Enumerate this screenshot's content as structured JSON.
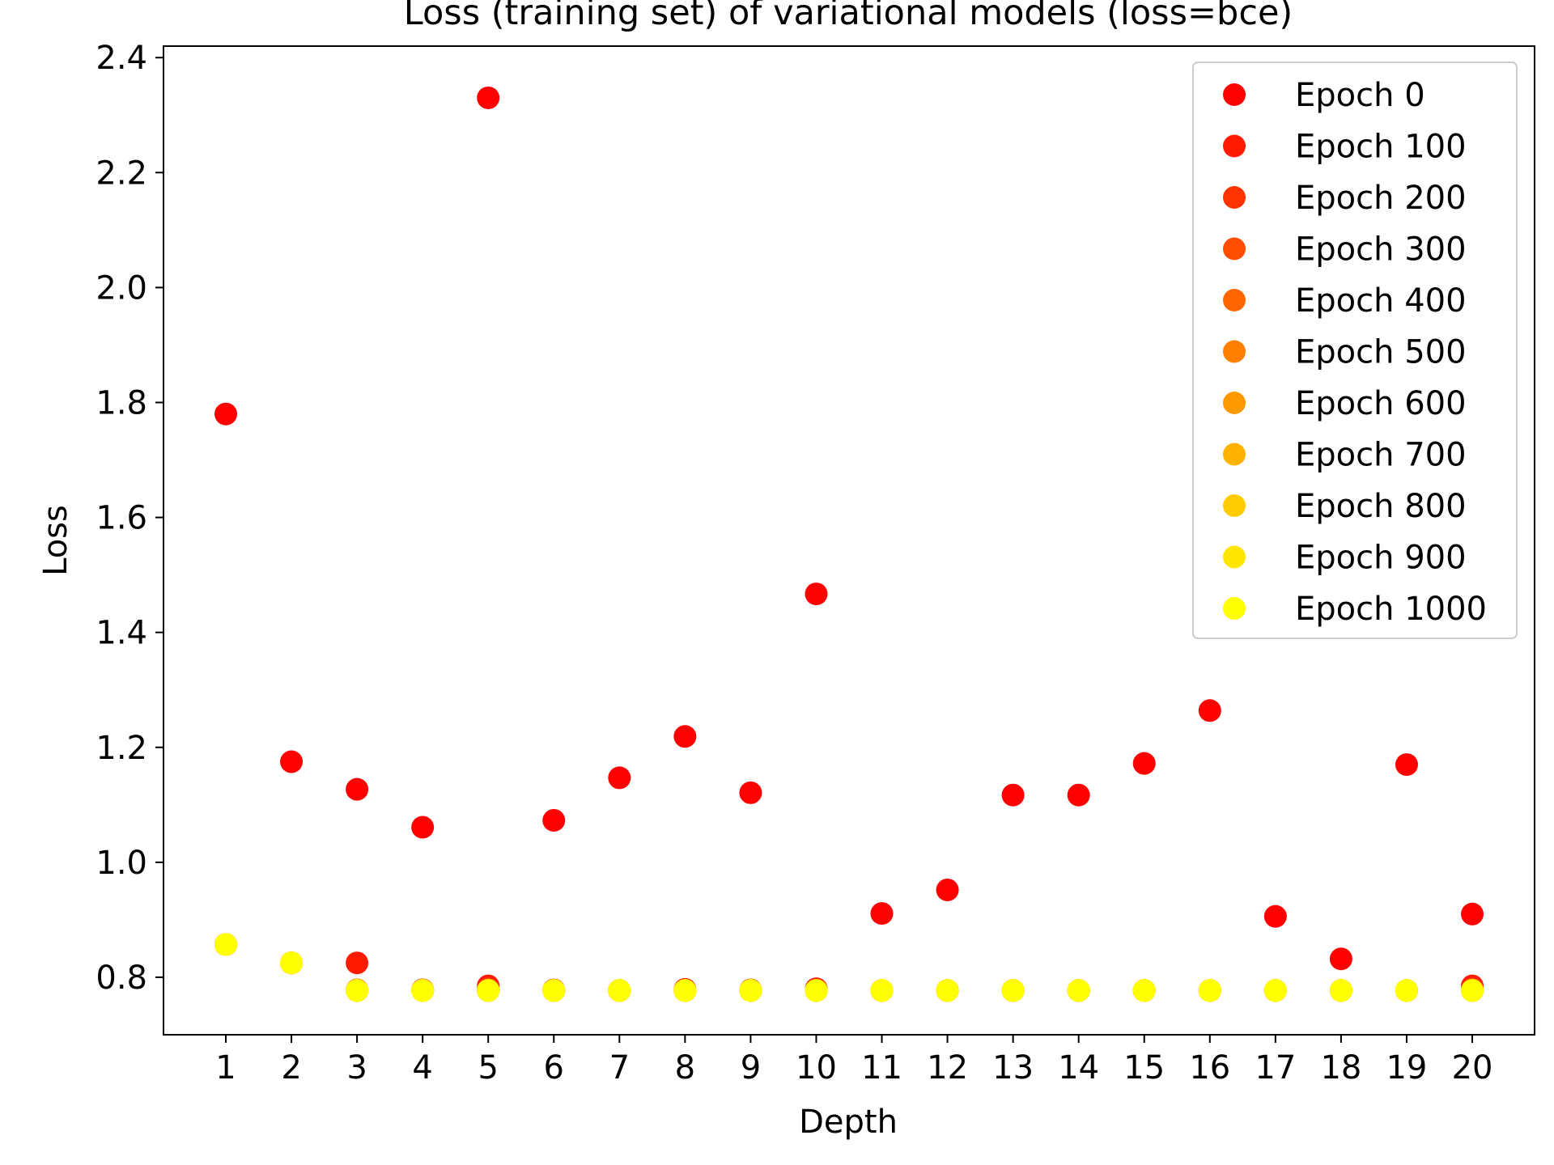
{
  "chart_data": {
    "type": "scatter",
    "title": "Loss (training set) of variational models (loss=bce)",
    "xlabel": "Depth",
    "ylabel": "Loss",
    "xlim": [
      0.05,
      20.95
    ],
    "ylim": [
      0.7,
      2.42
    ],
    "xticks": [
      1,
      2,
      3,
      4,
      5,
      6,
      7,
      8,
      9,
      10,
      11,
      12,
      13,
      14,
      15,
      16,
      17,
      18,
      19,
      20
    ],
    "yticks": [
      0.8,
      1.0,
      1.2,
      1.4,
      1.6,
      1.8,
      2.0,
      2.2,
      2.4
    ],
    "ytick_labels": [
      "0.8",
      "1.0",
      "1.2",
      "1.4",
      "1.6",
      "1.8",
      "2.0",
      "2.2",
      "2.4"
    ],
    "legend_position": "top-right",
    "grid": false,
    "x": [
      1,
      2,
      3,
      4,
      5,
      6,
      7,
      8,
      9,
      10,
      11,
      12,
      13,
      14,
      15,
      16,
      17,
      18,
      19,
      20
    ],
    "series": [
      {
        "name": "Epoch 0",
        "color": "#ff0000",
        "values": [
          1.78,
          1.175,
          1.127,
          1.061,
          2.33,
          1.073,
          1.147,
          1.219,
          1.121,
          1.467,
          0.911,
          0.952,
          1.117,
          1.117,
          1.172,
          1.264,
          0.906,
          0.832,
          1.17,
          0.91
        ]
      },
      {
        "name": "Epoch 100",
        "color": "#ff1a00",
        "values": [
          0.857,
          0.825,
          0.825,
          0.778,
          0.785,
          0.778,
          0.777,
          0.779,
          0.778,
          0.78,
          0.777,
          0.777,
          0.777,
          0.777,
          0.777,
          0.777,
          0.777,
          0.777,
          0.777,
          0.785
        ]
      },
      {
        "name": "Epoch 200",
        "color": "#ff3300",
        "values": [
          0.857,
          0.825,
          0.778,
          0.778,
          0.78,
          0.777,
          0.777,
          0.777,
          0.777,
          0.777,
          0.777,
          0.777,
          0.777,
          0.777,
          0.777,
          0.777,
          0.777,
          0.777,
          0.777,
          0.78
        ]
      },
      {
        "name": "Epoch 300",
        "color": "#ff4d00",
        "values": [
          0.857,
          0.825,
          0.777,
          0.777,
          0.778,
          0.777,
          0.777,
          0.777,
          0.777,
          0.777,
          0.777,
          0.777,
          0.777,
          0.777,
          0.777,
          0.777,
          0.777,
          0.777,
          0.777,
          0.778
        ]
      },
      {
        "name": "Epoch 400",
        "color": "#ff6600",
        "values": [
          0.857,
          0.825,
          0.777,
          0.777,
          0.777,
          0.777,
          0.777,
          0.777,
          0.777,
          0.777,
          0.777,
          0.777,
          0.777,
          0.777,
          0.777,
          0.777,
          0.777,
          0.777,
          0.777,
          0.777
        ]
      },
      {
        "name": "Epoch 500",
        "color": "#ff8000",
        "values": [
          0.857,
          0.825,
          0.777,
          0.777,
          0.777,
          0.777,
          0.777,
          0.777,
          0.777,
          0.777,
          0.777,
          0.777,
          0.777,
          0.777,
          0.777,
          0.777,
          0.777,
          0.777,
          0.777,
          0.777
        ]
      },
      {
        "name": "Epoch 600",
        "color": "#ff9900",
        "values": [
          0.857,
          0.825,
          0.777,
          0.777,
          0.777,
          0.777,
          0.777,
          0.777,
          0.777,
          0.777,
          0.777,
          0.777,
          0.777,
          0.777,
          0.777,
          0.777,
          0.777,
          0.777,
          0.777,
          0.777
        ]
      },
      {
        "name": "Epoch 700",
        "color": "#ffb300",
        "values": [
          0.857,
          0.825,
          0.777,
          0.777,
          0.777,
          0.777,
          0.777,
          0.777,
          0.777,
          0.777,
          0.777,
          0.777,
          0.777,
          0.777,
          0.777,
          0.777,
          0.777,
          0.777,
          0.777,
          0.777
        ]
      },
      {
        "name": "Epoch 800",
        "color": "#ffcc00",
        "values": [
          0.857,
          0.825,
          0.777,
          0.777,
          0.777,
          0.777,
          0.777,
          0.777,
          0.777,
          0.777,
          0.777,
          0.777,
          0.777,
          0.777,
          0.777,
          0.777,
          0.777,
          0.777,
          0.777,
          0.777
        ]
      },
      {
        "name": "Epoch 900",
        "color": "#ffe600",
        "values": [
          0.857,
          0.825,
          0.777,
          0.777,
          0.777,
          0.777,
          0.777,
          0.777,
          0.777,
          0.777,
          0.777,
          0.777,
          0.777,
          0.777,
          0.777,
          0.777,
          0.777,
          0.777,
          0.777,
          0.777
        ]
      },
      {
        "name": "Epoch 1000",
        "color": "#ffff00",
        "values": [
          0.857,
          0.825,
          0.777,
          0.777,
          0.777,
          0.777,
          0.777,
          0.777,
          0.777,
          0.777,
          0.777,
          0.777,
          0.777,
          0.777,
          0.777,
          0.777,
          0.777,
          0.777,
          0.777,
          0.777
        ]
      }
    ]
  }
}
